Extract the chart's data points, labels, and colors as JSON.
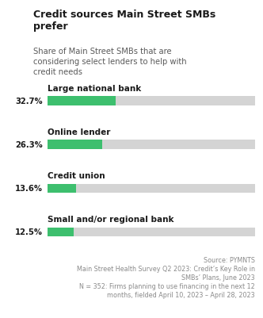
{
  "title": "Credit sources Main Street SMBs\nprefer",
  "subtitle": "Share of Main Street SMBs that are\nconsidering select lenders to help with\ncredit needs",
  "categories": [
    "Large national bank",
    "Online lender",
    "Credit union",
    "Small and/or regional bank"
  ],
  "values": [
    32.7,
    26.3,
    13.6,
    12.5
  ],
  "labels": [
    "32.7%",
    "26.3%",
    "13.6%",
    "12.5%"
  ],
  "bar_color": "#3dbf6e",
  "bg_bar_color": "#d4d4d4",
  "title_color": "#1a1a1a",
  "subtitle_color": "#5a5a5a",
  "label_color": "#1a1a1a",
  "category_color": "#1a1a1a",
  "footnote_color": "#8a8a8a",
  "background_color": "#ffffff",
  "footnote_lines": [
    "Source: PYMNTS",
    "Main Street Health Survey Q2 2023: Credit’s Key Role in",
    "SMBs’ Plans, June 2023",
    "N = 352: Firms planning to use financing in the next 12",
    "months, fielded April 10, 2023 – April 28, 2023"
  ]
}
